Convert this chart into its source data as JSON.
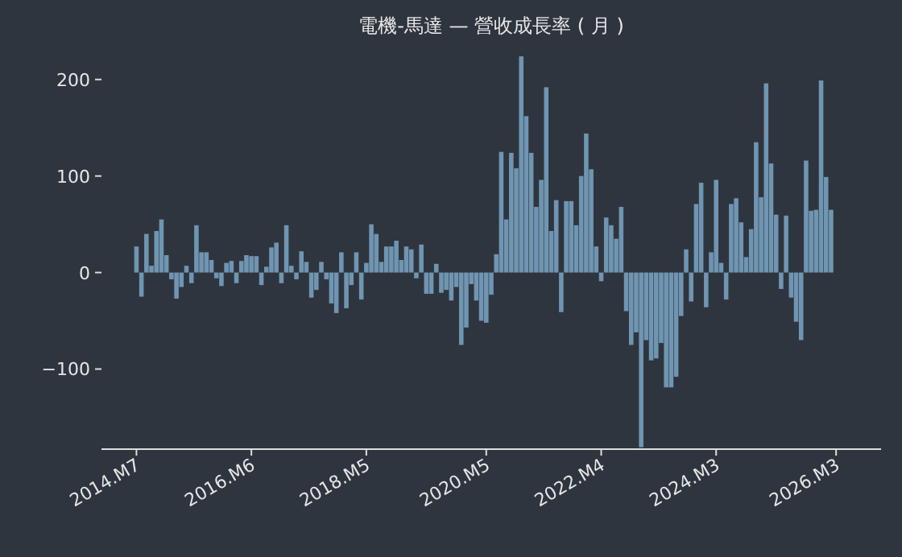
{
  "chart_data": {
    "type": "bar",
    "title": "電機-馬達 — 營收成長率 ( 月 )",
    "color": "#6f95b2",
    "x": [
      "2014-07",
      "2014-08",
      "2014-09",
      "2014-10",
      "2014-11",
      "2014-12",
      "2015-01",
      "2015-02",
      "2015-03",
      "2015-04",
      "2015-05",
      "2015-06",
      "2015-07",
      "2015-08",
      "2015-09",
      "2015-10",
      "2015-11",
      "2015-12",
      "2016-01",
      "2016-02",
      "2016-03",
      "2016-04",
      "2016-05",
      "2016-06",
      "2016-07",
      "2016-08",
      "2016-09",
      "2016-10",
      "2016-11",
      "2016-12",
      "2017-01",
      "2017-02",
      "2017-03",
      "2017-04",
      "2017-05",
      "2017-06",
      "2017-07",
      "2017-08",
      "2017-09",
      "2017-10",
      "2017-11",
      "2017-12",
      "2018-01",
      "2018-02",
      "2018-03",
      "2018-04",
      "2018-05",
      "2018-06",
      "2018-07",
      "2018-08",
      "2018-09",
      "2018-10",
      "2018-11",
      "2018-12",
      "2019-01",
      "2019-02",
      "2019-03",
      "2019-04",
      "2019-05",
      "2019-06",
      "2019-07",
      "2019-08",
      "2019-09",
      "2019-10",
      "2019-11",
      "2019-12",
      "2020-01",
      "2020-02",
      "2020-03",
      "2020-04",
      "2020-05",
      "2020-06",
      "2020-07",
      "2020-08",
      "2020-09",
      "2020-10",
      "2020-11",
      "2020-12",
      "2021-01",
      "2021-02",
      "2021-03",
      "2021-04",
      "2021-05",
      "2021-06",
      "2021-07",
      "2021-08",
      "2021-09",
      "2021-10",
      "2021-11",
      "2021-12",
      "2022-01",
      "2022-02",
      "2022-03",
      "2022-04",
      "2022-05",
      "2022-06",
      "2022-07",
      "2022-08",
      "2022-09",
      "2022-10",
      "2022-11",
      "2022-12",
      "2023-01",
      "2023-02",
      "2023-03",
      "2023-04",
      "2023-05",
      "2023-06",
      "2023-07",
      "2023-08",
      "2023-09",
      "2023-10",
      "2023-11",
      "2023-12",
      "2024-01",
      "2024-02",
      "2024-03",
      "2024-04",
      "2024-05",
      "2024-06",
      "2024-07",
      "2024-08",
      "2024-09",
      "2024-10",
      "2024-11",
      "2024-12",
      "2025-01",
      "2025-02",
      "2025-03",
      "2025-04",
      "2025-05",
      "2025-06",
      "2025-07",
      "2025-08",
      "2025-09",
      "2025-10",
      "2025-11",
      "2025-12",
      "2026-01",
      "2026-02"
    ],
    "values": [
      27,
      -25,
      40,
      7,
      43,
      55,
      18,
      -7,
      -27,
      -15,
      7,
      -11,
      49,
      21,
      21,
      13,
      -6,
      -14,
      10,
      12,
      -11,
      12,
      18,
      17,
      17,
      -13,
      6,
      26,
      31,
      -11,
      49,
      7,
      -7,
      22,
      11,
      -26,
      -18,
      11,
      -7,
      -32,
      -42,
      21,
      -37,
      -13,
      21,
      -28,
      10,
      50,
      40,
      11,
      27,
      27,
      33,
      13,
      27,
      24,
      -6,
      29,
      -22,
      -22,
      9,
      -21,
      -18,
      -29,
      -15,
      -75,
      -57,
      -12,
      -29,
      -50,
      -52,
      -23,
      19,
      125,
      55,
      124,
      108,
      224,
      162,
      124,
      68,
      96,
      192,
      43,
      75,
      -41,
      74,
      74,
      49,
      100,
      144,
      107,
      27,
      -9,
      57,
      49,
      35,
      68,
      -40,
      -75,
      -62,
      -181,
      -70,
      -91,
      -89,
      -73,
      -119,
      -119,
      -108,
      -45,
      24,
      -30,
      71,
      93,
      -36,
      21,
      96,
      10,
      -28,
      71,
      77,
      52,
      16,
      45,
      135,
      78,
      196,
      113,
      60,
      -17,
      59,
      -26,
      -51,
      -70,
      116,
      64,
      65,
      199,
      99,
      65
    ],
    "xlim": [
      "2013-12",
      "2026-12"
    ],
    "xticks": [
      {
        "value": "2014-07",
        "label": "2014.M7"
      },
      {
        "value": "2016-06",
        "label": "2016.M6"
      },
      {
        "value": "2018-05",
        "label": "2018.M5"
      },
      {
        "value": "2020-05",
        "label": "2020.M5"
      },
      {
        "value": "2022-04",
        "label": "2022.M4"
      },
      {
        "value": "2024-03",
        "label": "2024.M3"
      },
      {
        "value": "2026-03",
        "label": "2026.M3"
      }
    ],
    "ylim": [
      -183,
      224
    ],
    "yticks": [
      -100,
      0,
      100,
      200
    ]
  }
}
